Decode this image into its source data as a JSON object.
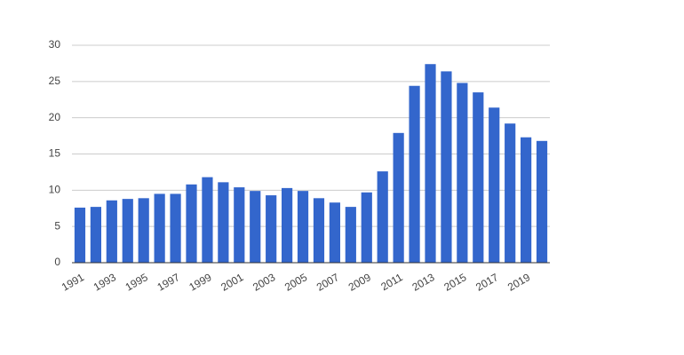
{
  "chart_data": {
    "type": "bar",
    "categories": [
      "1991",
      null,
      "1993",
      null,
      "1995",
      null,
      "1997",
      null,
      "1999",
      null,
      "2001",
      null,
      "2003",
      null,
      "2005",
      null,
      "2007",
      null,
      "2009",
      null,
      "2011",
      null,
      "2013",
      null,
      "2015",
      null,
      "2017",
      null,
      "2019",
      null
    ],
    "values": [
      7.6,
      7.7,
      8.6,
      8.8,
      8.9,
      9.5,
      9.5,
      10.8,
      11.8,
      11.1,
      10.4,
      9.9,
      9.3,
      10.3,
      9.9,
      8.9,
      8.3,
      7.7,
      9.7,
      12.6,
      17.9,
      24.4,
      27.4,
      26.4,
      24.8,
      23.5,
      21.4,
      19.2,
      17.3,
      16.8
    ],
    "color": "#3366cc",
    "ylim": [
      0,
      30
    ],
    "yticks": [
      0,
      5,
      10,
      15,
      20,
      25,
      30
    ],
    "grid": true
  }
}
